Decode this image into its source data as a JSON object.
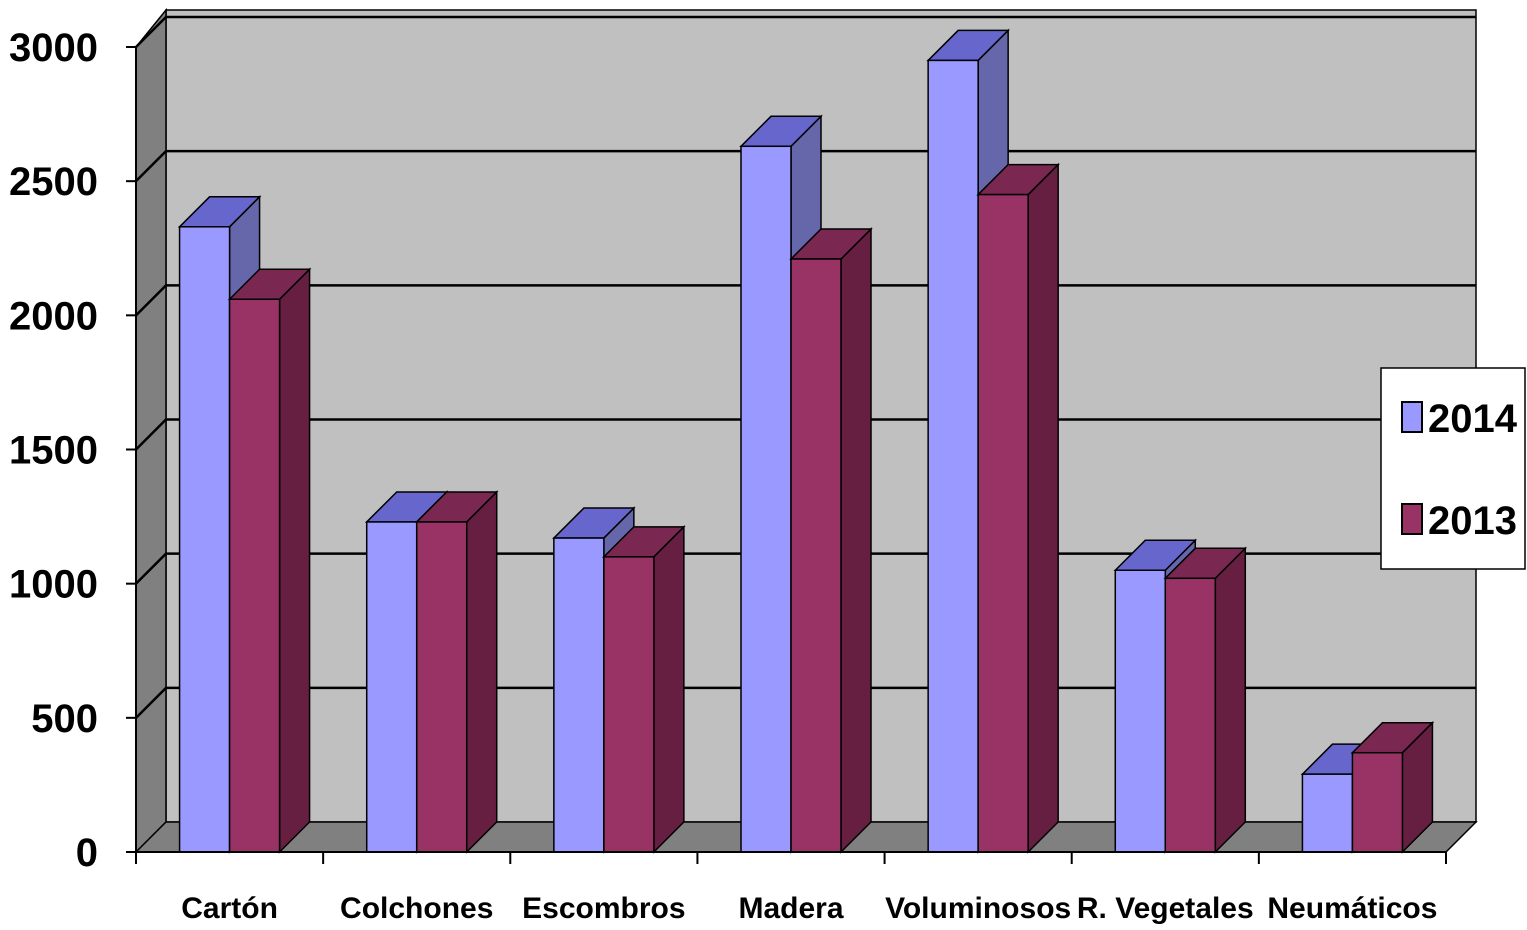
{
  "chart_data": {
    "type": "bar",
    "style": "3d-clustered-column",
    "categories": [
      "Cartón",
      "Colchones",
      "Escombros",
      "Madera",
      "Voluminosos",
      "R. Vegetales",
      "Neumáticos"
    ],
    "series": [
      {
        "name": "2014",
        "values": [
          2330,
          1230,
          1170,
          2630,
          2950,
          1050,
          290
        ],
        "color": "#9999ff"
      },
      {
        "name": "2013",
        "values": [
          2060,
          1230,
          1100,
          2210,
          2450,
          1020,
          370
        ],
        "color": "#993366"
      }
    ],
    "ylim": [
      0,
      3000
    ],
    "yticks": [
      "0",
      "500",
      "1000",
      "1500",
      "2000",
      "2500",
      "3000"
    ],
    "grid": true,
    "legend_position": "right"
  },
  "colors": {
    "wall": "#c0c0c0",
    "side_wall": "#808080",
    "floor": "#808080",
    "series_2014_top": "#6666cc",
    "series_2014_side": "#6666aa",
    "series_2013_top": "#7a2852",
    "series_2013_side": "#661f40"
  }
}
